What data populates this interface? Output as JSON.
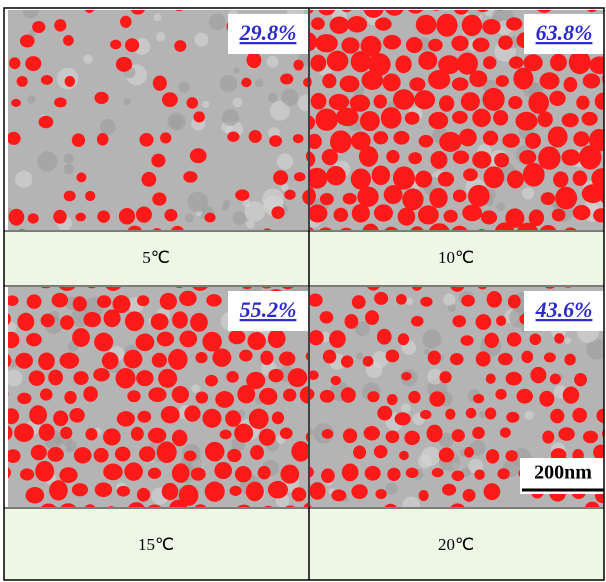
{
  "panels": [
    {
      "coverage": "29.8%",
      "temperature": "5℃"
    },
    {
      "coverage": "63.8%",
      "temperature": "10℃"
    },
    {
      "coverage": "55.2%",
      "temperature": "15℃"
    },
    {
      "coverage": "43.6%",
      "temperature": "20℃"
    }
  ],
  "scale_bar": "200nm"
}
